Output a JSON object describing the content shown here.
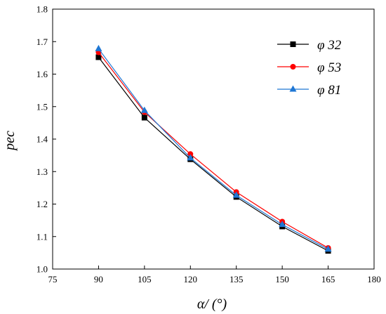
{
  "chart_data": {
    "type": "line",
    "xlabel": "α/ (°)",
    "ylabel": "pec",
    "xlim": [
      75,
      180
    ],
    "ylim": [
      1.0,
      1.8
    ],
    "xticks": [
      75,
      90,
      105,
      120,
      135,
      150,
      165,
      180
    ],
    "yticks": [
      1.0,
      1.1,
      1.2,
      1.3,
      1.4,
      1.5,
      1.6,
      1.7,
      1.8
    ],
    "x": [
      90,
      105,
      120,
      135,
      150,
      165
    ],
    "grid": false,
    "legend_position": "top-right",
    "series": [
      {
        "name": "φ 32",
        "color": "#000000",
        "marker": "square",
        "values": [
          1.652,
          1.466,
          1.338,
          1.222,
          1.131,
          1.056
        ]
      },
      {
        "name": "φ 53",
        "color": "#ff0000",
        "marker": "circle",
        "values": [
          1.667,
          1.483,
          1.354,
          1.237,
          1.146,
          1.065
        ]
      },
      {
        "name": "φ 81",
        "color": "#1f77d4",
        "marker": "triangle",
        "values": [
          1.678,
          1.488,
          1.342,
          1.227,
          1.137,
          1.061
        ]
      }
    ]
  }
}
